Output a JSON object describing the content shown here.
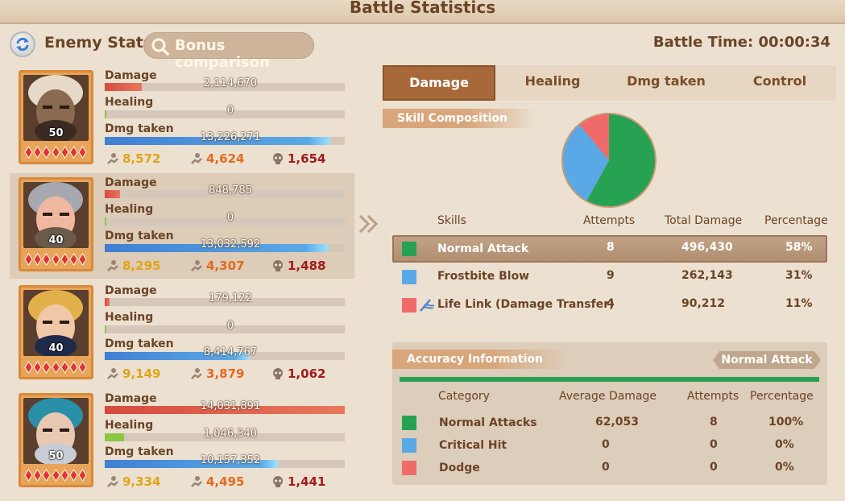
{
  "header": {
    "title": "Battle Statistics"
  },
  "toolbar": {
    "enemy_stats_label": "Enemy Stats",
    "bonus_label": "Bonus comparison",
    "battle_time": "Battle Time: 00:00:34"
  },
  "stat_labels": {
    "damage": "Damage",
    "healing": "Healing",
    "dmg_taken": "Dmg taken"
  },
  "heroes": [
    {
      "level": "50",
      "damage": "2,114,670",
      "damage_frac": 0.155,
      "healing": "0",
      "healing_frac": 0.0,
      "dmg_taken": "13,226,271",
      "dmg_taken_frac": 0.94,
      "s1": "8,572",
      "s2": "4,624",
      "s3": "1,654"
    },
    {
      "level": "40",
      "damage": "848,785",
      "damage_frac": 0.065,
      "healing": "0",
      "healing_frac": 0.0,
      "dmg_taken": "13,032,592",
      "dmg_taken_frac": 0.93,
      "s1": "8,295",
      "s2": "4,307",
      "s3": "1,488"
    },
    {
      "level": "40",
      "damage": "179,122",
      "damage_frac": 0.02,
      "healing": "0",
      "healing_frac": 0.0,
      "dmg_taken": "8,414,767",
      "dmg_taken_frac": 0.6,
      "s1": "9,149",
      "s2": "3,879",
      "s3": "1,062"
    },
    {
      "level": "50",
      "damage": "14,031,891",
      "damage_frac": 1.0,
      "healing": "1,046,340",
      "healing_frac": 0.08,
      "dmg_taken": "10,157,352",
      "dmg_taken_frac": 0.72,
      "s1": "9,334",
      "s2": "4,495",
      "s3": "1,441"
    }
  ],
  "tabs": [
    "Damage",
    "Healing",
    "Dmg taken",
    "Control"
  ],
  "skill_composition": {
    "title": "Skill Composition",
    "columns": [
      "Skills",
      "Attempts",
      "Total Damage",
      "Percentage"
    ],
    "rows": [
      {
        "name": "Normal Attack",
        "attempts": "8",
        "total": "496,430",
        "pct": "58%",
        "color": "#27a152"
      },
      {
        "name": "Frostbite Blow",
        "attempts": "9",
        "total": "262,143",
        "pct": "31%",
        "color": "#5aa9e6"
      },
      {
        "name": "Life Link (Damage Transfer)",
        "attempts": "4",
        "total": "90,212",
        "pct": "11%",
        "color": "#f06a6a"
      }
    ]
  },
  "chart_data": {
    "type": "pie",
    "labels": [
      "Normal Attack",
      "Frostbite Blow",
      "Life Link (Damage Transfer)"
    ],
    "values": [
      58,
      31,
      11
    ],
    "colors": [
      "#27a152",
      "#5aa9e6",
      "#f06a6a"
    ]
  },
  "accuracy": {
    "title": "Accuracy Information",
    "tag": "Normal Attack",
    "columns": [
      "Category",
      "Average Damage",
      "Attempts",
      "Percentage"
    ],
    "rows": [
      {
        "name": "Normal Attacks",
        "avg": "62,053",
        "attempts": "8",
        "pct": "100%",
        "color": "#27a152"
      },
      {
        "name": "Critical Hit",
        "avg": "0",
        "attempts": "0",
        "pct": "0%",
        "color": "#5aa9e6"
      },
      {
        "name": "Dodge",
        "avg": "0",
        "attempts": "0",
        "pct": "0%",
        "color": "#f06a6a"
      }
    ]
  },
  "icons": {
    "back": "refresh-arrows-icon",
    "search": "magnifier-icon",
    "stat1": "hand-coins-icon",
    "stat2": "hand-coins-icon",
    "stat3": "skull-icon",
    "skill3": "life-link-icon"
  }
}
